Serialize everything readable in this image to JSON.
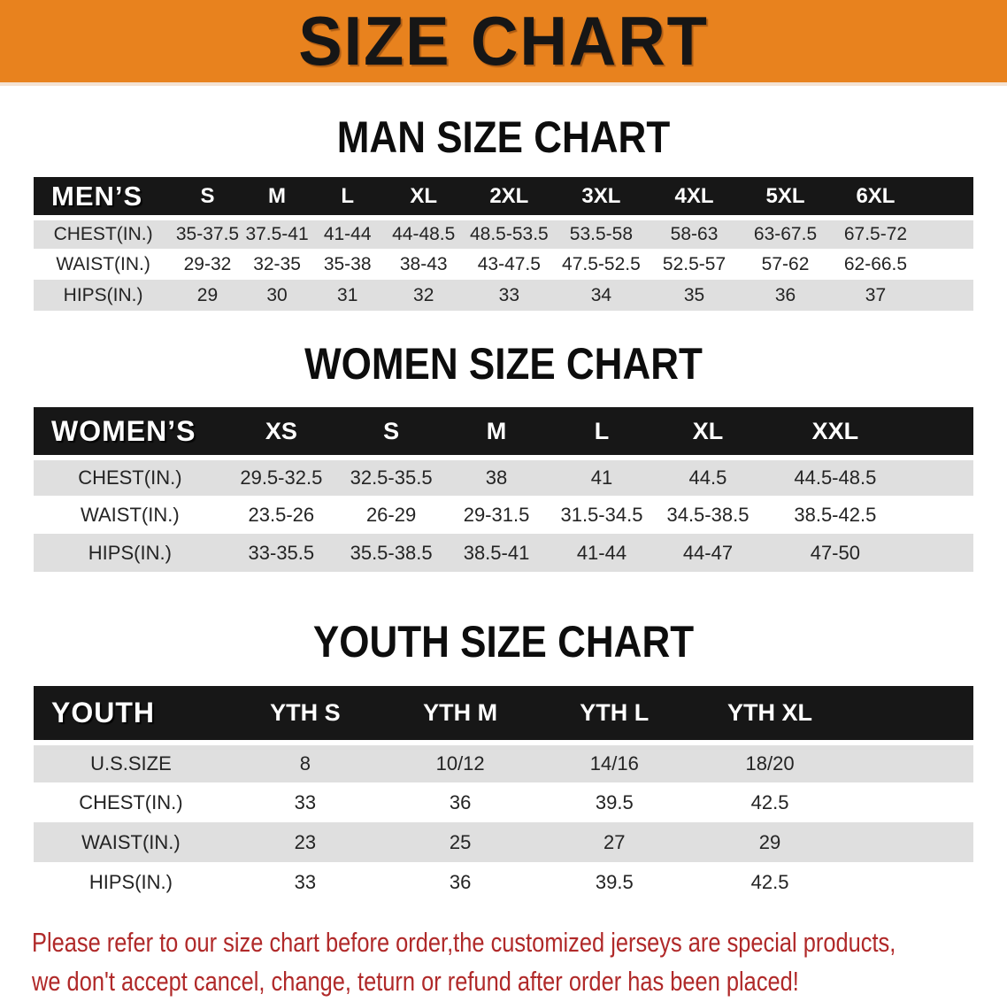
{
  "banner": {
    "title": "SIZE CHART",
    "bg_color": "#e8821e",
    "text_color": "#161616"
  },
  "sections": [
    {
      "title": "MAN SIZE CHART",
      "table": {
        "category": "MEN’S",
        "sizes": [
          "S",
          "M",
          "L",
          "XL",
          "2XL",
          "3XL",
          "4XL",
          "5XL",
          "6XL"
        ],
        "rows": [
          {
            "label": "CHEST(IN.)",
            "values": [
              "35-37.5",
              "37.5-41",
              "41-44",
              "44-48.5",
              "48.5-53.5",
              "53.5-58",
              "58-63",
              "63-67.5",
              "67.5-72"
            ]
          },
          {
            "label": "WAIST(IN.)",
            "values": [
              "29-32",
              "32-35",
              "35-38",
              "38-43",
              "43-47.5",
              "47.5-52.5",
              "52.5-57",
              "57-62",
              "62-66.5"
            ]
          },
          {
            "label": "HIPS(IN.)",
            "values": [
              "29",
              "30",
              "31",
              "32",
              "33",
              "34",
              "35",
              "36",
              "37"
            ]
          }
        ]
      }
    },
    {
      "title": "WOMEN SIZE CHART",
      "table": {
        "category": "WOMEN’S",
        "sizes": [
          "XS",
          "S",
          "M",
          "L",
          "XL",
          "XXL"
        ],
        "rows": [
          {
            "label": "CHEST(IN.)",
            "values": [
              "29.5-32.5",
              "32.5-35.5",
              "38",
              "41",
              "44.5",
              "44.5-48.5"
            ]
          },
          {
            "label": "WAIST(IN.)",
            "values": [
              "23.5-26",
              "26-29",
              "29-31.5",
              "31.5-34.5",
              "34.5-38.5",
              "38.5-42.5"
            ]
          },
          {
            "label": "HIPS(IN.)",
            "values": [
              "33-35.5",
              "35.5-38.5",
              "38.5-41",
              "41-44",
              "44-47",
              "47-50"
            ]
          }
        ]
      }
    },
    {
      "title": "YOUTH SIZE CHART",
      "table": {
        "category": "YOUTH",
        "sizes": [
          "YTH S",
          "YTH M",
          "YTH L",
          "YTH XL"
        ],
        "rows": [
          {
            "label": "U.S.SIZE",
            "values": [
              "8",
              "10/12",
              "14/16",
              "18/20"
            ]
          },
          {
            "label": "CHEST(IN.)",
            "values": [
              "33",
              "36",
              "39.5",
              "42.5"
            ]
          },
          {
            "label": "WAIST(IN.)",
            "values": [
              "23",
              "25",
              "27",
              "29"
            ]
          },
          {
            "label": "HIPS(IN.)",
            "values": [
              "33",
              "36",
              "39.5",
              "42.5"
            ]
          }
        ]
      }
    }
  ],
  "disclaimer": {
    "lines": [
      "Please refer to our size chart before order,the customized jerseys are special products,",
      "we don't accept cancel, change, teturn or refund after order has been placed!"
    ],
    "text_color": "#b02929"
  },
  "colors": {
    "header_bar": "#171717",
    "row_stripe": "#dfdfdf",
    "banner_orange": "#e8821e",
    "disclaimer_red": "#b02929"
  }
}
